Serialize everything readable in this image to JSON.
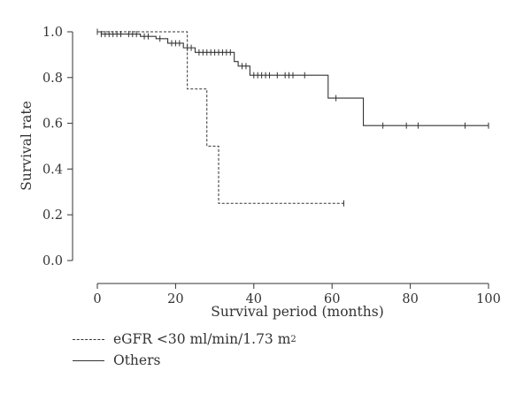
{
  "chart_data": {
    "type": "line",
    "subtype": "kaplan-meier step curves with censor ticks",
    "xlabel": "Survival period (months)",
    "ylabel": "Survival rate",
    "xlim": [
      0,
      100
    ],
    "ylim": [
      0,
      1.0
    ],
    "xticks": [
      "0",
      "20",
      "40",
      "60",
      "80",
      "100"
    ],
    "yticks": [
      "0.0",
      "0.2",
      "0.4",
      "0.6",
      "0.8",
      "1.0"
    ],
    "grid": false,
    "legend_position": "bottom-left, below plot",
    "series": [
      {
        "name": "eGFR <30 ml/min/1.73 m",
        "name_superscript": "2",
        "style": "dashed",
        "steps": [
          [
            0,
            1.0
          ],
          [
            23,
            0.75
          ],
          [
            28,
            0.5
          ],
          [
            31,
            0.25
          ]
        ],
        "end_x": 63,
        "censors": [
          [
            63,
            0.25
          ]
        ]
      },
      {
        "name": "Others",
        "style": "solid",
        "steps": [
          [
            0,
            1.0
          ],
          [
            1,
            0.99
          ],
          [
            11,
            0.98
          ],
          [
            15,
            0.97
          ],
          [
            18,
            0.95
          ],
          [
            22,
            0.93
          ],
          [
            25,
            0.91
          ],
          [
            35,
            0.87
          ],
          [
            36,
            0.85
          ],
          [
            39,
            0.81
          ],
          [
            59,
            0.71
          ],
          [
            68,
            0.59
          ]
        ],
        "end_x": 100,
        "censors": [
          [
            0,
            1.0
          ],
          [
            1,
            0.99
          ],
          [
            2,
            0.99
          ],
          [
            3,
            0.99
          ],
          [
            4,
            0.99
          ],
          [
            5,
            0.99
          ],
          [
            6,
            0.99
          ],
          [
            8,
            0.99
          ],
          [
            9,
            0.99
          ],
          [
            10,
            0.99
          ],
          [
            12,
            0.98
          ],
          [
            13,
            0.98
          ],
          [
            16,
            0.97
          ],
          [
            19,
            0.95
          ],
          [
            20,
            0.95
          ],
          [
            21,
            0.95
          ],
          [
            23,
            0.93
          ],
          [
            24,
            0.93
          ],
          [
            26,
            0.91
          ],
          [
            27,
            0.91
          ],
          [
            28,
            0.91
          ],
          [
            29,
            0.91
          ],
          [
            30,
            0.91
          ],
          [
            31,
            0.91
          ],
          [
            32,
            0.91
          ],
          [
            33,
            0.91
          ],
          [
            34,
            0.91
          ],
          [
            37,
            0.85
          ],
          [
            38,
            0.85
          ],
          [
            40,
            0.81
          ],
          [
            41,
            0.81
          ],
          [
            42,
            0.81
          ],
          [
            43,
            0.81
          ],
          [
            44,
            0.81
          ],
          [
            46,
            0.81
          ],
          [
            48,
            0.81
          ],
          [
            49,
            0.81
          ],
          [
            50,
            0.81
          ],
          [
            53,
            0.81
          ],
          [
            61,
            0.71
          ],
          [
            73,
            0.59
          ],
          [
            79,
            0.59
          ],
          [
            82,
            0.59
          ],
          [
            94,
            0.59
          ],
          [
            100,
            0.59
          ]
        ]
      }
    ]
  },
  "colors": {
    "ink": "#333333",
    "background": "#ffffff"
  }
}
